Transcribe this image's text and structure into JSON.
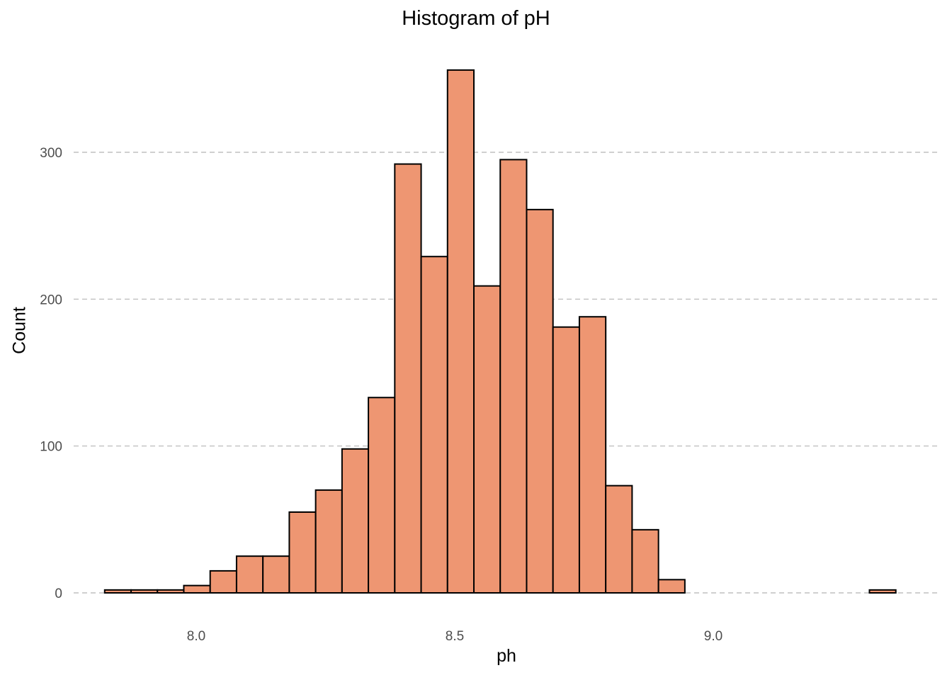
{
  "chart_data": {
    "type": "bar",
    "title": "Histogram of pH",
    "xlabel": "ph",
    "ylabel": "Count",
    "bin_edges": [
      7.823,
      7.874,
      7.925,
      7.976,
      8.027,
      8.078,
      8.129,
      8.18,
      8.231,
      8.282,
      8.333,
      8.384,
      8.435,
      8.486,
      8.537,
      8.588,
      8.639,
      8.69,
      8.741,
      8.792,
      8.843,
      8.894,
      8.945,
      8.996,
      9.047,
      9.098,
      9.149,
      9.2,
      9.251,
      9.302,
      9.353
    ],
    "values": [
      2,
      2,
      2,
      5,
      15,
      25,
      25,
      55,
      70,
      98,
      133,
      292,
      229,
      356,
      209,
      295,
      261,
      181,
      188,
      73,
      43,
      9,
      0,
      0,
      0,
      0,
      0,
      0,
      0,
      2
    ],
    "xlim": [
      7.78,
      9.4
    ],
    "ylim": [
      -14,
      357
    ],
    "x_ticks": [
      "8.0",
      "8.5",
      "9.0"
    ],
    "y_ticks": [
      "0",
      "100",
      "200",
      "300"
    ],
    "grid": "horizontal dashed",
    "bar_fill": "#ee9672",
    "bar_stroke": "#000000",
    "grid_color": "#b5b5b5"
  }
}
